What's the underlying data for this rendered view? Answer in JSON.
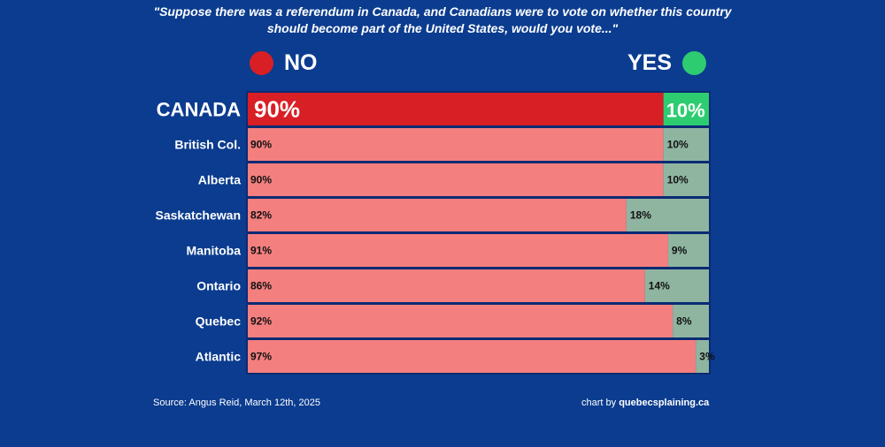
{
  "title_lines": [
    "\"Suppose there was a referendum in Canada, and Canadians were to vote on whether this country",
    "should become part of the United States, would you vote...\""
  ],
  "legend": {
    "no_label": "NO",
    "yes_label": "YES",
    "no_color": "#d81f26",
    "yes_color": "#2ecc71"
  },
  "colors": {
    "background": "#0b3c8f",
    "total_no": "#d81f26",
    "total_yes": "#2ecc71",
    "region_no": "#f37f7f",
    "region_yes": "#8fb5a1",
    "row_border": "#0a2b73"
  },
  "chart_data": {
    "type": "bar",
    "orientation": "horizontal",
    "stacked": true,
    "normalized": true,
    "categories": [
      "CANADA",
      "British Col.",
      "Alberta",
      "Saskatchewan",
      "Manitoba",
      "Ontario",
      "Quebec",
      "Atlantic"
    ],
    "series": [
      {
        "name": "NO",
        "values": [
          90,
          90,
          90,
          82,
          91,
          86,
          92,
          97
        ]
      },
      {
        "name": "YES",
        "values": [
          10,
          10,
          10,
          18,
          9,
          14,
          8,
          3
        ]
      }
    ],
    "value_labels": {
      "NO": [
        "90%",
        "90%",
        "90%",
        "82%",
        "91%",
        "86%",
        "92%",
        "97%"
      ],
      "YES": [
        "10%",
        "10%",
        "10%",
        "18%",
        "9%",
        "14%",
        "8%",
        "3%"
      ]
    },
    "legend_position": "top",
    "xlim": [
      0,
      100
    ]
  },
  "footer": {
    "source": "Source: Angus Reid, March 12th, 2025",
    "credit_prefix": "chart by ",
    "credit_site": "quebecsplaining.ca"
  }
}
